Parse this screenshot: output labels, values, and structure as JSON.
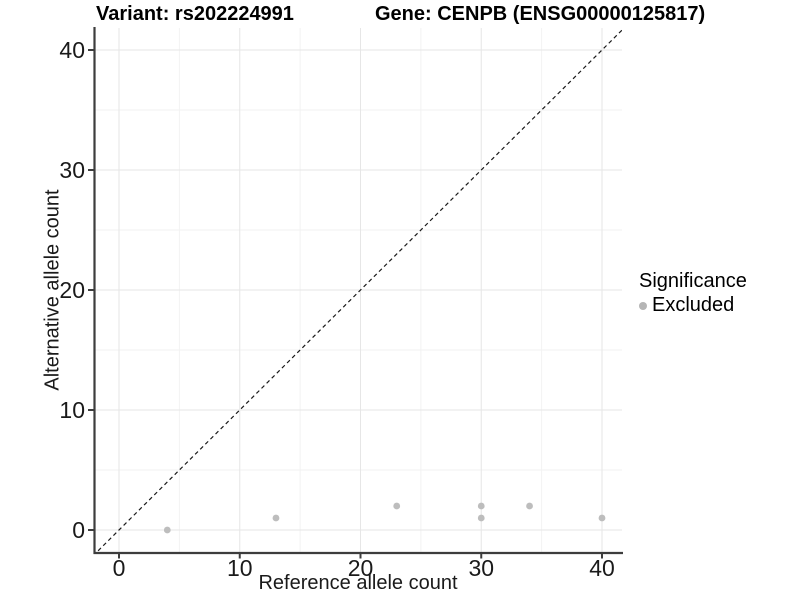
{
  "chart_data": {
    "type": "scatter",
    "title_left": "Variant: rs202224991",
    "title_right": "Gene: CENPB (ENSG00000125817)",
    "xlabel": "Reference allele count",
    "ylabel": "Alternative allele count",
    "xlim": [
      -2.1,
      41.7
    ],
    "ylim": [
      -1.9,
      41.8
    ],
    "x_ticks": [
      0,
      10,
      20,
      30,
      40
    ],
    "y_ticks": [
      0,
      10,
      20,
      30,
      40
    ],
    "x_minor_ticks": [
      5,
      15,
      25,
      35
    ],
    "y_minor_ticks": [
      5,
      15,
      25,
      35
    ],
    "grid": true,
    "identity_line": true,
    "series": [
      {
        "name": "Excluded",
        "points": [
          {
            "x": 4,
            "y": 0
          },
          {
            "x": 13,
            "y": 1
          },
          {
            "x": 23,
            "y": 2
          },
          {
            "x": 30,
            "y": 1
          },
          {
            "x": 30,
            "y": 2
          },
          {
            "x": 34,
            "y": 2
          },
          {
            "x": 40,
            "y": 1
          }
        ]
      }
    ],
    "legend": {
      "title": "Significance",
      "position": "right",
      "items": [
        {
          "label": "Excluded",
          "color": "#b5b5b5"
        }
      ]
    },
    "colors": {
      "point": "#bdbdbd",
      "grid_major": "#e6e6e6",
      "grid_minor": "#f2f2f2",
      "axis": "#3d3d3d",
      "tick_label": "#1a1a1a",
      "identity_line": "#1a1a1a"
    }
  }
}
